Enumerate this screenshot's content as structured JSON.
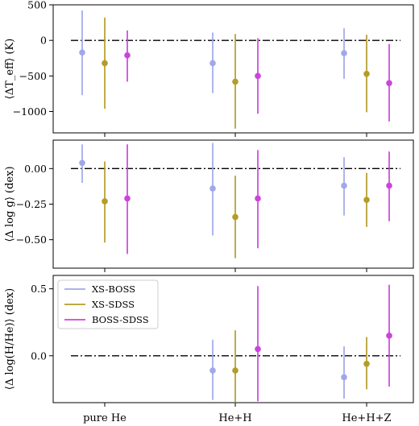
{
  "chart_data": {
    "type": "errorbar",
    "categories": [
      "pure He",
      "He+H",
      "He+H+Z"
    ],
    "reference_line": 0,
    "series_styles": [
      {
        "name": "XS-BOSS",
        "color": "#a0a8ea"
      },
      {
        "name": "XS-SDSS",
        "color": "#b49c2a"
      },
      {
        "name": "BOSS-SDSS",
        "color": "#cc44dd"
      }
    ],
    "legend": {
      "placement": "upper-left of bottom panel",
      "entries": [
        "XS-BOSS",
        "XS-SDSS",
        "BOSS-SDSS"
      ]
    },
    "panels": [
      {
        "id": "teff",
        "ylabel": "⟨ΔT_eff⟩ (K)",
        "ylim": [
          -1300,
          500
        ],
        "ticks": [
          500,
          0,
          -500,
          -1000
        ],
        "tick_labels": [
          "500",
          "0",
          "−500",
          "−1000"
        ],
        "series": [
          {
            "name": "XS-BOSS",
            "values": [
              -170,
              -320,
              -180
            ],
            "lower": [
              -770,
              -740,
              -540
            ],
            "upper": [
              420,
              110,
              170
            ]
          },
          {
            "name": "XS-SDSS",
            "values": [
              -320,
              -580,
              -470
            ],
            "lower": [
              -960,
              -1240,
              -1010
            ],
            "upper": [
              320,
              90,
              80
            ]
          },
          {
            "name": "BOSS-SDSS",
            "values": [
              -210,
              -500,
              -600
            ],
            "lower": [
              -580,
              -1030,
              -1140
            ],
            "upper": [
              140,
              30,
              -50
            ]
          }
        ]
      },
      {
        "id": "logg",
        "ylabel": "⟨Δ log g⟩ (dex)",
        "ylim": [
          -0.7,
          0.2
        ],
        "ticks": [
          0.0,
          -0.25,
          -0.5
        ],
        "tick_labels": [
          "0.00",
          "−0.25",
          "−0.50"
        ],
        "series": [
          {
            "name": "XS-BOSS",
            "values": [
              0.04,
              -0.14,
              -0.12
            ],
            "lower": [
              -0.1,
              -0.47,
              -0.33
            ],
            "upper": [
              0.17,
              0.18,
              0.08
            ]
          },
          {
            "name": "XS-SDSS",
            "values": [
              -0.23,
              -0.34,
              -0.22
            ],
            "lower": [
              -0.52,
              -0.63,
              -0.41
            ],
            "upper": [
              0.05,
              -0.05,
              -0.03
            ]
          },
          {
            "name": "BOSS-SDSS",
            "values": [
              -0.21,
              -0.21,
              -0.12
            ],
            "lower": [
              -0.6,
              -0.56,
              -0.37
            ],
            "upper": [
              0.17,
              0.13,
              0.12
            ]
          }
        ]
      },
      {
        "id": "hhe",
        "ylabel": "⟨Δ log(H/He)⟩ (dex)",
        "ylim": [
          -0.35,
          0.6
        ],
        "ticks": [
          0.5,
          0.0
        ],
        "tick_labels": [
          "0.5",
          "0.0"
        ],
        "series": [
          {
            "name": "XS-BOSS",
            "values": [
              null,
              -0.11,
              -0.16
            ],
            "lower": [
              null,
              -0.33,
              -0.32
            ],
            "upper": [
              null,
              0.12,
              0.07
            ]
          },
          {
            "name": "XS-SDSS",
            "values": [
              null,
              -0.11,
              -0.06
            ],
            "lower": [
              null,
              -0.35,
              -0.25
            ],
            "upper": [
              null,
              0.19,
              0.14
            ]
          },
          {
            "name": "BOSS-SDSS",
            "values": [
              null,
              0.05,
              0.15
            ],
            "lower": [
              null,
              -0.34,
              -0.23
            ],
            "upper": [
              null,
              0.52,
              0.53
            ]
          }
        ]
      }
    ]
  }
}
